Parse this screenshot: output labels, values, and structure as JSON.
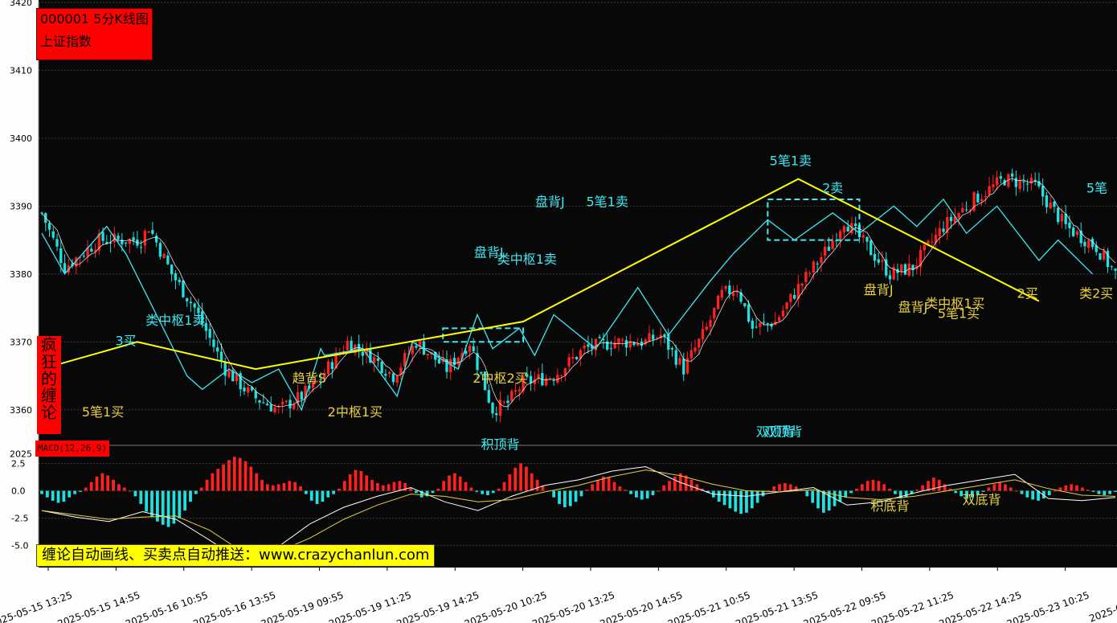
{
  "chart_title": "000001 5分K线图",
  "index_name": "上证指数",
  "side_badge": [
    "疯",
    "狂",
    "的",
    "缠",
    "论"
  ],
  "macd_label": "MACD(12,26,9)",
  "promo_text": "缠论自动画线、买卖点自动推送：www.crazychanlun.com",
  "colors": {
    "background": "#080808",
    "up": "#ff2020",
    "down": "#20e0e0",
    "stroke_line": "#3ee8f0",
    "segment_line": "#ffff00",
    "ma_line": "#ffffff",
    "sell_label": "#3ee8f0",
    "buy_label": "#e8d040",
    "badge": "#ff0000",
    "promo": "#ffff00"
  },
  "chart_data": {
    "type": "candlestick",
    "price_axis": {
      "ylim": [
        3355,
        3420
      ],
      "ticks": [
        3360,
        3370,
        3380,
        3390,
        3400,
        3410,
        3420
      ]
    },
    "macd_axis": {
      "ylim": [
        -7,
        4
      ],
      "ticks": [
        2.5,
        0.0,
        -2.5,
        -5.0
      ],
      "top_label": "2025"
    },
    "x_tick_labels": [
      "2025-05-15 13:25",
      "2025-05-15 14:55",
      "2025-05-16 10:55",
      "2025-05-16 13:55",
      "2025-05-19 09:55",
      "2025-05-19 11:25",
      "2025-05-19 14:25",
      "2025-05-20 10:25",
      "2025-05-20 13:25",
      "2025-05-20 14:55",
      "2025-05-21 10:55",
      "2025-05-21 13:55",
      "2025-05-22 09:55",
      "2025-05-22 11:25",
      "2025-05-22 14:25",
      "2025-05-23 10:25",
      "2025-05-23"
    ],
    "bar_count": 282,
    "price_anchors": [
      [
        0,
        3389
      ],
      [
        6,
        3381
      ],
      [
        15,
        3385
      ],
      [
        26,
        3385
      ],
      [
        28,
        3387
      ],
      [
        34,
        3380
      ],
      [
        40,
        3375
      ],
      [
        48,
        3366
      ],
      [
        55,
        3362
      ],
      [
        62,
        3360
      ],
      [
        68,
        3362
      ],
      [
        72,
        3364
      ],
      [
        80,
        3370
      ],
      [
        86,
        3368
      ],
      [
        92,
        3365
      ],
      [
        98,
        3370
      ],
      [
        106,
        3366
      ],
      [
        112,
        3370
      ],
      [
        118,
        3360
      ],
      [
        122,
        3361
      ],
      [
        126,
        3364
      ],
      [
        134,
        3365
      ],
      [
        142,
        3369
      ],
      [
        150,
        3370
      ],
      [
        158,
        3370
      ],
      [
        162,
        3371
      ],
      [
        168,
        3366
      ],
      [
        174,
        3372
      ],
      [
        178,
        3377
      ],
      [
        182,
        3378
      ],
      [
        186,
        3372
      ],
      [
        192,
        3373
      ],
      [
        198,
        3378
      ],
      [
        206,
        3384
      ],
      [
        210,
        3388
      ],
      [
        216,
        3384
      ],
      [
        222,
        3380
      ],
      [
        228,
        3381
      ],
      [
        236,
        3387
      ],
      [
        244,
        3391
      ],
      [
        252,
        3394
      ],
      [
        260,
        3393
      ],
      [
        268,
        3387
      ],
      [
        276,
        3384
      ],
      [
        281,
        3380
      ]
    ],
    "strokes": [
      [
        0,
        3386
      ],
      [
        6,
        3380
      ],
      [
        17,
        3387
      ],
      [
        22,
        3383
      ],
      [
        38,
        3365
      ],
      [
        42,
        3363
      ],
      [
        49,
        3366
      ],
      [
        55,
        3364
      ],
      [
        62,
        3366
      ],
      [
        68,
        3360
      ],
      [
        73,
        3369
      ],
      [
        74,
        3368
      ],
      [
        84,
        3369
      ],
      [
        93,
        3362
      ],
      [
        97,
        3370
      ],
      [
        109,
        3366
      ],
      [
        114,
        3374
      ],
      [
        118,
        3369
      ],
      [
        125,
        3372
      ],
      [
        129,
        3368
      ],
      [
        134,
        3374
      ],
      [
        145,
        3369
      ],
      [
        156,
        3378
      ],
      [
        164,
        3371
      ],
      [
        175,
        3379
      ],
      [
        181,
        3383
      ],
      [
        190,
        3388
      ],
      [
        197,
        3385
      ],
      [
        207,
        3389
      ],
      [
        214,
        3386
      ],
      [
        223,
        3390
      ],
      [
        229,
        3387
      ],
      [
        236,
        3391
      ],
      [
        242,
        3386
      ],
      [
        250,
        3390
      ],
      [
        261,
        3382
      ],
      [
        266,
        3385
      ],
      [
        275,
        3380
      ]
    ],
    "segments": [
      [
        0,
        3366
      ],
      [
        25,
        3370
      ],
      [
        56,
        3366
      ],
      [
        126,
        3373
      ],
      [
        198,
        3394
      ],
      [
        261,
        3376
      ]
    ],
    "centers": [
      [
        105,
        3372
      ],
      [
        126,
        3370
      ]
    ],
    "centers_b": [
      [
        190,
        3391
      ],
      [
        214,
        3385
      ]
    ],
    "macd_hist": [
      -0.3,
      -0.6,
      -0.9,
      -1.1,
      -1.0,
      -0.6,
      -0.3,
      -0.1,
      0.3,
      0.8,
      1.3,
      1.6,
      1.4,
      1.0,
      0.6,
      0.3,
      0.0,
      -0.5,
      -1.2,
      -1.9,
      -2.4,
      -2.8,
      -3.1,
      -3.3,
      -3.0,
      -2.5,
      -1.8,
      -1.0,
      -0.3,
      0.3,
      1.0,
      1.6,
      2.0,
      2.4,
      2.8,
      3.1,
      3.0,
      2.7,
      2.2,
      1.6,
      1.0,
      0.6,
      0.5,
      0.6,
      0.7,
      0.9,
      0.8,
      0.4,
      -0.3,
      -0.9,
      -1.2,
      -1.0,
      -0.6,
      -0.3,
      0.2,
      0.9,
      1.5,
      1.9,
      1.8,
      1.4,
      1.0,
      0.7,
      0.5,
      0.6,
      0.8,
      0.9,
      0.7,
      0.3,
      -0.2,
      -0.6,
      -0.5,
      -0.2,
      0.2,
      0.9,
      1.4,
      1.6,
      1.3,
      0.8,
      0.3,
      -0.1,
      -0.3,
      -0.4,
      -0.2,
      0.2,
      0.8,
      1.5,
      2.1,
      2.5,
      2.2,
      1.6,
      1.0,
      0.5,
      0.0,
      -0.6,
      -1.2,
      -1.5,
      -1.4,
      -1.0,
      -0.5,
      0.1,
      0.6,
      1.0,
      1.3,
      1.2,
      0.8,
      0.4,
      0.1,
      -0.3,
      -0.6,
      -0.8,
      -0.7,
      -0.4,
      0.0,
      0.5,
      0.9,
      1.3,
      1.6,
      1.4,
      1.0,
      0.6,
      0.2,
      -0.2,
      -0.6,
      -1.0,
      -1.3,
      -1.6,
      -1.9,
      -2.1,
      -2.0,
      -1.6,
      -1.1,
      -0.5,
      0.0,
      0.4,
      0.6,
      0.7,
      0.6,
      0.4,
      0.1,
      -0.5,
      -1.1,
      -1.6,
      -2.0,
      -1.8,
      -1.4,
      -1.0,
      -0.6,
      -0.2,
      0.2,
      0.6,
      0.9,
      1.0,
      0.9,
      0.6,
      0.2,
      -0.3,
      -0.7,
      -0.6,
      -0.3,
      0.1,
      0.5,
      0.9,
      1.2,
      1.0,
      0.6,
      0.2,
      -0.2,
      -0.5,
      -0.7,
      -0.6,
      -0.4,
      -0.1,
      0.3,
      0.6,
      0.8,
      0.6,
      0.3,
      0.0,
      -0.3,
      -0.6,
      -0.8,
      -0.9,
      -0.7,
      -0.4,
      0.0,
      0.3,
      0.5,
      0.6,
      0.5,
      0.3,
      0.1,
      -0.1,
      -0.3,
      -0.4,
      -0.3,
      -0.1
    ],
    "dif": [
      -1.8,
      -2.4,
      -2.8,
      -1.9,
      -2.6,
      -4.5,
      -6.5,
      -5.2,
      -3.0,
      -1.5,
      -0.5,
      0.3,
      -1.0,
      -1.8,
      -0.5,
      0.5,
      1.0,
      1.8,
      2.2,
      0.8,
      -0.3,
      -0.5,
      -0.1,
      0.3,
      -1.3,
      -1.0,
      -0.2,
      0.5,
      1.0,
      1.5,
      -0.7,
      -0.9,
      -0.6
    ],
    "dea": [
      -1.8,
      -2.2,
      -2.6,
      -2.4,
      -2.3,
      -3.6,
      -5.6,
      -5.6,
      -4.3,
      -2.6,
      -1.3,
      -0.3,
      -0.5,
      -1.0,
      -0.8,
      -0.1,
      0.5,
      1.3,
      1.9,
      1.4,
      0.6,
      0.0,
      -0.1,
      0.1,
      -0.6,
      -0.8,
      -0.5,
      0.0,
      0.5,
      1.0,
      0.2,
      -0.4,
      -0.5
    ],
    "annotations": [
      {
        "text": "5笔1买",
        "bar": 16,
        "price": 3359,
        "dir": "up",
        "kind": "buy"
      },
      {
        "text": "3买",
        "bar": 22,
        "price": 3369.5,
        "dir": "down",
        "kind": "sell"
      },
      {
        "text": "类中枢1卖",
        "bar": 35,
        "price": 3372.5,
        "dir": "down",
        "kind": "sell"
      },
      {
        "text": "趋背S",
        "bar": 70,
        "price": 3364,
        "dir": "up",
        "kind": "buy"
      },
      {
        "text": "2中枢1买",
        "bar": 82,
        "price": 3359,
        "dir": "up",
        "kind": "buy"
      },
      {
        "text": "盘背J",
        "bar": 117,
        "price": 3382.5,
        "dir": "down",
        "kind": "sell"
      },
      {
        "text": "类中枢1卖",
        "bar": 127,
        "price": 3381.5,
        "dir": "down",
        "kind": "sell"
      },
      {
        "text": "2中枢2买",
        "bar": 120,
        "price": 3364,
        "dir": "up",
        "kind": "buy"
      },
      {
        "text": "盘背J",
        "bar": 133,
        "price": 3390,
        "dir": "down",
        "kind": "sell"
      },
      {
        "text": "5笔1卖",
        "bar": 148,
        "price": 3390,
        "dir": "down",
        "kind": "sell"
      },
      {
        "text": "5笔1卖",
        "bar": 196,
        "price": 3396,
        "dir": "down",
        "kind": "sell"
      },
      {
        "text": "2卖",
        "bar": 207,
        "price": 3392,
        "dir": "down",
        "kind": "sell"
      },
      {
        "text": "盘背J",
        "bar": 219,
        "price": 3377,
        "dir": "up",
        "kind": "buy"
      },
      {
        "text": "类中枢1买",
        "bar": 239,
        "price": 3375,
        "dir": "up",
        "kind": "buy"
      },
      {
        "text": "盘背J",
        "bar": 228,
        "price": 3374.5,
        "dir": "up",
        "kind": "buy"
      },
      {
        "text": "5笔1买",
        "bar": 240,
        "price": 3373.5,
        "dir": "up",
        "kind": "buy"
      },
      {
        "text": "2买",
        "bar": 258,
        "price": 3376.5,
        "dir": "up",
        "kind": "buy"
      },
      {
        "text": "类2买",
        "bar": 276,
        "price": 3376.5,
        "dir": "up",
        "kind": "buy"
      },
      {
        "text": "5笔",
        "bar": 281,
        "price": 3392,
        "dir": "down",
        "kind": "sell"
      },
      {
        "text": "积顶背",
        "bar": 120,
        "price_macd": 3.8,
        "kind": "sell"
      },
      {
        "text": "双顶背",
        "bar": 192,
        "price_macd": 5.0,
        "kind": "sell"
      },
      {
        "text": "双顶背",
        "bar": 194,
        "price_macd": 5.0,
        "kind": "sell"
      },
      {
        "text": "积底背",
        "bar": 222,
        "price_macd": -1.8,
        "kind": "buy"
      },
      {
        "text": "双底背",
        "bar": 246,
        "price_macd": -1.2,
        "kind": "buy"
      }
    ]
  }
}
